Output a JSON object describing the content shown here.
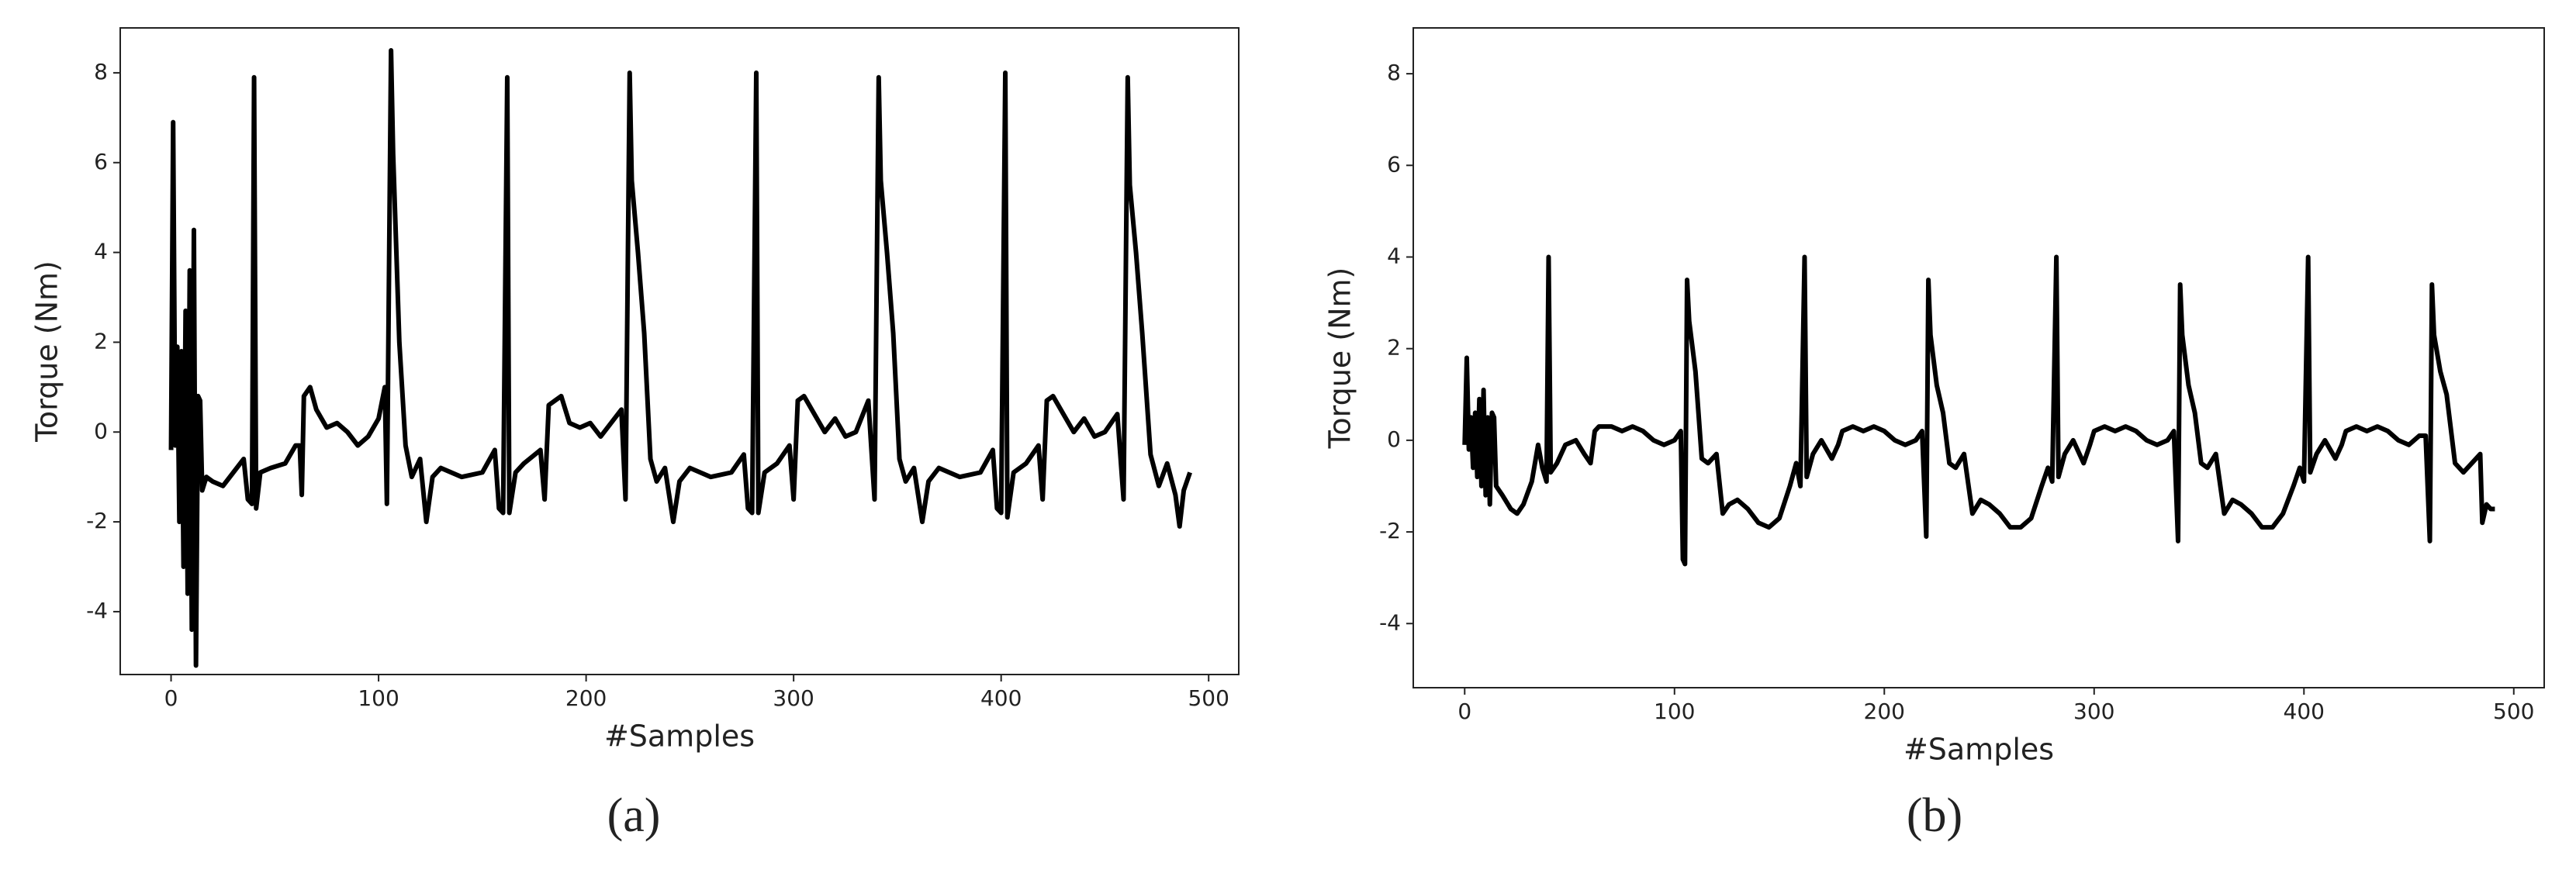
{
  "chart_data": [
    {
      "type": "line",
      "xlabel": "#Samples",
      "ylabel": "Torque (Nm)",
      "caption": "(a)",
      "xlim": [
        -24.5,
        514.5
      ],
      "ylim": [
        -5.4,
        9.0
      ],
      "xticks": [
        0,
        100,
        200,
        300,
        400,
        500
      ],
      "yticks": [
        -4,
        -2,
        0,
        2,
        4,
        6,
        8
      ],
      "x": [
        0,
        1,
        2,
        3,
        4,
        5,
        6,
        7,
        8,
        9,
        10,
        11,
        12,
        13,
        14,
        15,
        17,
        20,
        25,
        30,
        35,
        37,
        39,
        40,
        41,
        43,
        48,
        55,
        60,
        62,
        63,
        64,
        67,
        70,
        75,
        80,
        85,
        90,
        95,
        100,
        103,
        104,
        106,
        107,
        110,
        113,
        116,
        120,
        123,
        126,
        130,
        140,
        150,
        156,
        158,
        160,
        162,
        163,
        166,
        170,
        178,
        180,
        182,
        185,
        188,
        192,
        197,
        202,
        207,
        212,
        217,
        219,
        221,
        222,
        225,
        228,
        231,
        234,
        238,
        242,
        245,
        250,
        260,
        270,
        276,
        278,
        280,
        282,
        283,
        286,
        292,
        298,
        300,
        302,
        305,
        310,
        315,
        320,
        325,
        330,
        336,
        339,
        341,
        342,
        345,
        348,
        351,
        354,
        358,
        362,
        365,
        370,
        380,
        390,
        396,
        398,
        400,
        402,
        403,
        406,
        412,
        418,
        420,
        422,
        425,
        430,
        435,
        440,
        445,
        450,
        456,
        459,
        461,
        462,
        465,
        468,
        472,
        476,
        480,
        484,
        486,
        488,
        491
      ],
      "series": [
        {
          "color": "#000000",
          "values": [
            -0.4,
            6.9,
            -0.3,
            1.9,
            -2,
            1.8,
            -3,
            2.7,
            -3.6,
            3.6,
            -4.4,
            4.5,
            -5.2,
            0.8,
            0.7,
            -1.3,
            -1.0,
            -1.1,
            -1.2,
            -0.9,
            -0.6,
            -1.5,
            -1.6,
            7.9,
            -1.7,
            -0.9,
            -0.8,
            -0.7,
            -0.3,
            -0.3,
            -1.4,
            0.8,
            1.0,
            0.5,
            0.1,
            0.2,
            0.0,
            -0.3,
            -0.1,
            0.3,
            1.0,
            -1.6,
            8.5,
            6.2,
            2,
            -0.3,
            -1.0,
            -0.6,
            -2.0,
            -1.0,
            -0.8,
            -1.0,
            -0.9,
            -0.4,
            -1.7,
            -1.8,
            7.9,
            -1.8,
            -0.9,
            -0.7,
            -0.4,
            -1.5,
            0.6,
            0.7,
            0.8,
            0.2,
            0.1,
            0.2,
            -0.1,
            0.2,
            0.5,
            -1.5,
            8.0,
            5.6,
            4,
            2.2,
            -0.6,
            -1.1,
            -0.8,
            -2.0,
            -1.1,
            -0.8,
            -1.0,
            -0.9,
            -0.5,
            -1.7,
            -1.8,
            8.0,
            -1.8,
            -0.9,
            -0.7,
            -0.3,
            -1.5,
            0.7,
            0.8,
            0.4,
            0.0,
            0.3,
            -0.1,
            0.0,
            0.7,
            -1.5,
            7.9,
            5.6,
            4,
            2.2,
            -0.6,
            -1.1,
            -0.8,
            -2.0,
            -1.1,
            -0.8,
            -1.0,
            -0.9,
            -0.4,
            -1.7,
            -1.8,
            8.0,
            -1.9,
            -0.9,
            -0.7,
            -0.3,
            -1.5,
            0.7,
            0.8,
            0.4,
            0.0,
            0.3,
            -0.1,
            0.0,
            0.4,
            -1.5,
            7.9,
            5.5,
            4,
            2.2,
            -0.5,
            -1.2,
            -0.7,
            -1.4,
            -2.1,
            -1.3,
            -0.9
          ]
        }
      ]
    },
    {
      "type": "line",
      "xlabel": "#Samples",
      "ylabel": "Torque (Nm)",
      "caption": "(b)",
      "xlim": [
        -24.5,
        514.5
      ],
      "ylim": [
        -5.4,
        9.0
      ],
      "xticks": [
        0,
        100,
        200,
        300,
        400,
        500
      ],
      "yticks": [
        -4,
        -2,
        0,
        2,
        4,
        6,
        8
      ],
      "x": [
        0,
        1,
        2,
        3,
        4,
        5,
        6,
        7,
        8,
        9,
        10,
        11,
        12,
        13,
        14,
        15,
        18,
        22,
        25,
        28,
        32,
        35,
        37,
        39,
        40,
        41,
        44,
        48,
        53,
        57,
        60,
        62,
        64,
        70,
        75,
        80,
        85,
        90,
        95,
        100,
        103,
        104,
        105,
        106,
        107,
        110,
        113,
        116,
        120,
        123,
        126,
        130,
        135,
        140,
        145,
        150,
        155,
        158,
        160,
        162,
        163,
        166,
        170,
        175,
        178,
        180,
        185,
        190,
        195,
        200,
        205,
        210,
        215,
        218,
        220,
        221,
        222,
        225,
        228,
        231,
        234,
        238,
        242,
        246,
        250,
        255,
        260,
        265,
        270,
        275,
        278,
        280,
        282,
        283,
        286,
        290,
        295,
        298,
        300,
        305,
        310,
        315,
        320,
        325,
        330,
        335,
        338,
        340,
        341,
        342,
        345,
        348,
        351,
        354,
        358,
        362,
        366,
        370,
        375,
        380,
        385,
        390,
        395,
        398,
        400,
        402,
        403,
        406,
        410,
        415,
        418,
        420,
        425,
        430,
        435,
        440,
        445,
        450,
        455,
        458,
        460,
        461,
        462,
        465,
        468,
        472,
        476,
        480,
        484,
        485,
        487,
        489,
        491
      ],
      "series": [
        {
          "color": "#000000",
          "values": [
            -0.1,
            1.8,
            -0.2,
            0.5,
            -0.6,
            0.6,
            -0.8,
            0.9,
            -1.0,
            1.1,
            -1.2,
            0.5,
            -1.4,
            0.6,
            0.5,
            -1.0,
            -1.2,
            -1.5,
            -1.6,
            -1.4,
            -0.9,
            -0.1,
            -0.6,
            -0.9,
            4.0,
            -0.7,
            -0.5,
            -0.1,
            0.0,
            -0.3,
            -0.5,
            0.2,
            0.3,
            0.3,
            0.2,
            0.3,
            0.2,
            0.0,
            -0.1,
            0.0,
            0.2,
            -2.6,
            -2.7,
            3.5,
            2.6,
            1.5,
            -0.4,
            -0.5,
            -0.3,
            -1.6,
            -1.4,
            -1.3,
            -1.5,
            -1.8,
            -1.9,
            -1.7,
            -1.0,
            -0.5,
            -1.0,
            4.0,
            -0.8,
            -0.3,
            0.0,
            -0.4,
            -0.1,
            0.2,
            0.3,
            0.2,
            0.3,
            0.2,
            0.0,
            -0.1,
            0.0,
            0.2,
            -2.1,
            3.5,
            2.3,
            1.2,
            0.6,
            -0.5,
            -0.6,
            -0.3,
            -1.6,
            -1.3,
            -1.4,
            -1.6,
            -1.9,
            -1.9,
            -1.7,
            -1.0,
            -0.6,
            -0.9,
            4.0,
            -0.8,
            -0.3,
            0.0,
            -0.5,
            -0.1,
            0.2,
            0.3,
            0.2,
            0.3,
            0.2,
            0.0,
            -0.1,
            0.0,
            0.2,
            -2.2,
            3.4,
            2.3,
            1.2,
            0.6,
            -0.5,
            -0.6,
            -0.3,
            -1.6,
            -1.3,
            -1.4,
            -1.6,
            -1.9,
            -1.9,
            -1.6,
            -1.0,
            -0.6,
            -0.9,
            4.0,
            -0.7,
            -0.3,
            0.0,
            -0.4,
            -0.1,
            0.2,
            0.3,
            0.2,
            0.3,
            0.2,
            0.0,
            -0.1,
            0.1,
            0.1,
            -2.2,
            3.4,
            2.3,
            1.5,
            1.0,
            -0.5,
            -0.7,
            -0.5,
            -0.3,
            -1.8,
            -1.4,
            -1.5,
            -1.5
          ]
        }
      ]
    }
  ]
}
